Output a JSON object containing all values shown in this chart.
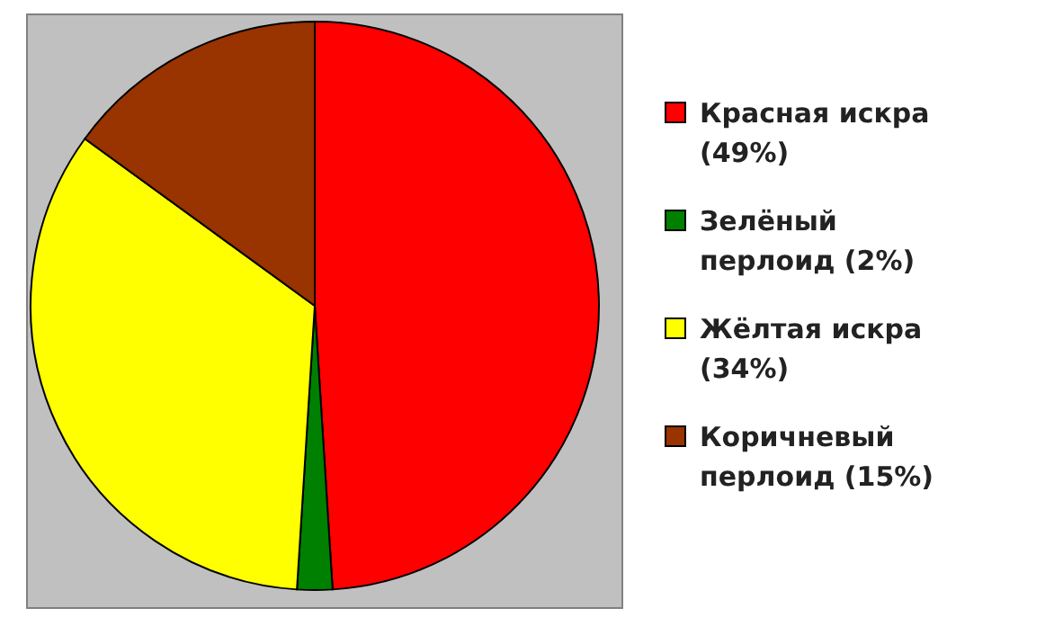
{
  "chart_data": {
    "type": "pie",
    "categories": [
      "Красная искра (49%)",
      "Зелёный перлоид (2%)",
      "Жёлтая искра (34%)",
      "Коричневый перлоид (15%)"
    ],
    "values": [
      49,
      2,
      34,
      15
    ],
    "colors": [
      "#ff0000",
      "#008000",
      "#ffff00",
      "#993300"
    ],
    "legend": "right"
  }
}
